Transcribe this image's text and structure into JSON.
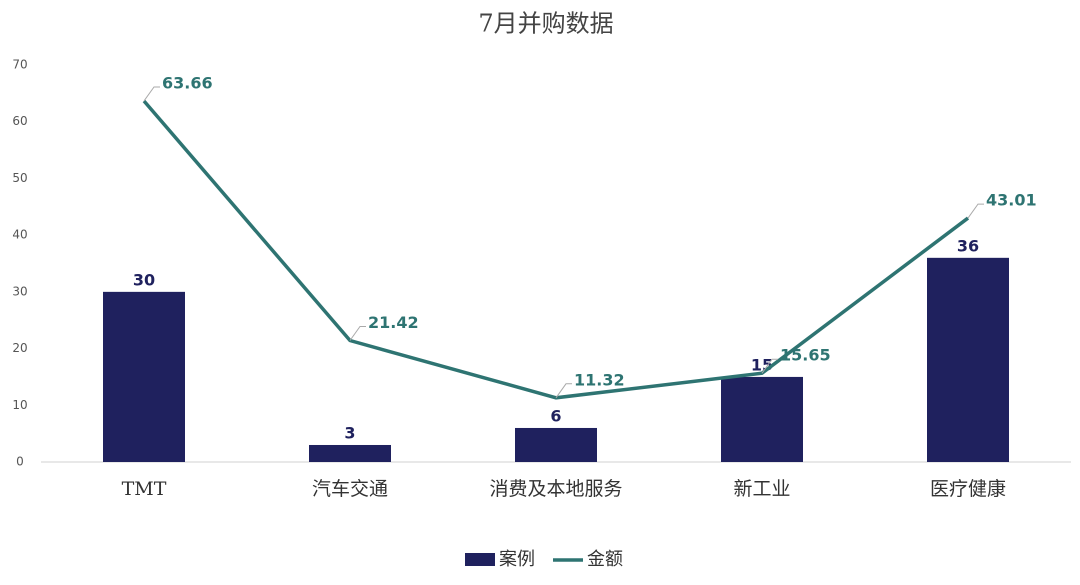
{
  "chart_data": {
    "type": "bar",
    "title": "7月并购数据",
    "categories": [
      "TMT",
      "汽车交通",
      "消费及本地服务",
      "新工业",
      "医疗健康"
    ],
    "series": [
      {
        "name": "案例",
        "type": "bar",
        "color": "#1f215e",
        "values": [
          30,
          3,
          6,
          15,
          36
        ]
      },
      {
        "name": "金额",
        "type": "line",
        "color": "#2e7472",
        "values": [
          63.66,
          21.42,
          11.32,
          15.65,
          43.01
        ]
      }
    ],
    "ylim": [
      0,
      70
    ],
    "yticks": [
      0,
      10,
      20,
      30,
      40,
      50,
      60,
      70
    ],
    "grid": false,
    "legend": "bottom"
  }
}
